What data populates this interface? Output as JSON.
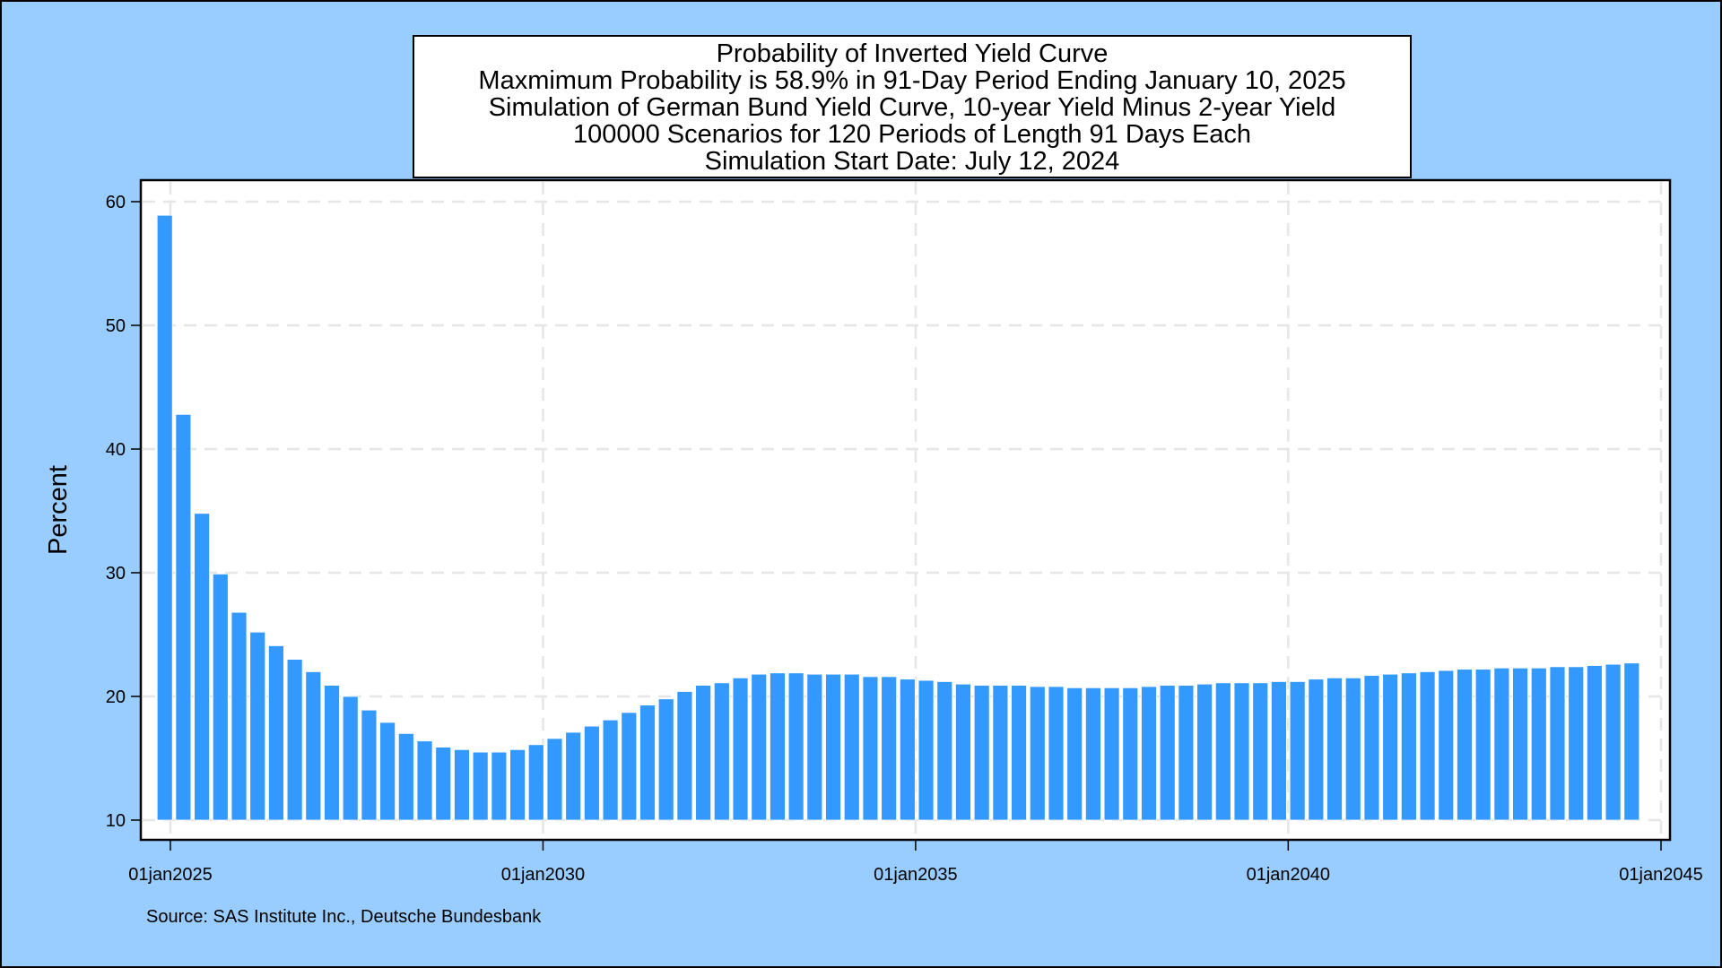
{
  "chart_data": {
    "type": "bar",
    "title_lines": [
      "Probability of Inverted Yield Curve",
      "Maxmimum Probability is 58.9% in 91-Day Period Ending January 10, 2025",
      "Simulation of German Bund Yield Curve, 10-year Yield Minus 2-year Yield",
      "100000 Scenarios for 120 Periods of Length 91 Days Each",
      "Simulation Start Date: July 12, 2024"
    ],
    "ylabel": "Percent",
    "xlabel": "",
    "ylim": [
      10,
      60
    ],
    "yticks": [
      10,
      20,
      30,
      40,
      50,
      60
    ],
    "xlim": [
      "2024-12-01",
      "2045-01-01"
    ],
    "xticks": [
      {
        "date": "2025-01-01",
        "label": "01jan2025"
      },
      {
        "date": "2030-01-01",
        "label": "01jan2030"
      },
      {
        "date": "2035-01-01",
        "label": "01jan2035"
      },
      {
        "date": "2040-01-01",
        "label": "01jan2040"
      },
      {
        "date": "2045-01-01",
        "label": "01jan2045"
      }
    ],
    "grid": true,
    "bar_color": "#3399FF",
    "period_end_dates": [
      "2025-01-10",
      "2025-04-11",
      "2025-07-11",
      "2025-10-10",
      "2026-01-09",
      "2026-04-10",
      "2026-07-10",
      "2026-10-09",
      "2027-01-08",
      "2027-04-09",
      "2027-07-09",
      "2027-10-08",
      "2028-01-07",
      "2028-04-07",
      "2028-07-07",
      "2028-10-06",
      "2029-01-05",
      "2029-04-06",
      "2029-07-06",
      "2029-10-05",
      "2030-01-04",
      "2030-04-05",
      "2030-07-05",
      "2030-10-04",
      "2031-01-03",
      "2031-04-04",
      "2031-07-04",
      "2031-10-03",
      "2032-01-02",
      "2032-04-02",
      "2032-07-02",
      "2032-10-01",
      "2032-12-31",
      "2033-04-01",
      "2033-07-01",
      "2033-09-30",
      "2033-12-30",
      "2034-03-31",
      "2034-06-30",
      "2034-09-29",
      "2034-12-29",
      "2035-03-30",
      "2035-06-29",
      "2035-09-28",
      "2035-12-28",
      "2036-03-28",
      "2036-06-27",
      "2036-09-26",
      "2036-12-26",
      "2037-03-27",
      "2037-06-26",
      "2037-09-25",
      "2037-12-25",
      "2038-03-26",
      "2038-06-25",
      "2038-09-24",
      "2038-12-24",
      "2039-03-25",
      "2039-06-24",
      "2039-09-23",
      "2039-12-23",
      "2040-03-23",
      "2040-06-22",
      "2040-09-21",
      "2040-12-21",
      "2041-03-22",
      "2041-06-21",
      "2041-09-20",
      "2041-12-20",
      "2042-03-21",
      "2042-06-20",
      "2042-09-19",
      "2042-12-19",
      "2043-03-20",
      "2043-06-19",
      "2043-09-18",
      "2043-12-18",
      "2044-03-18",
      "2044-06-17",
      "2044-09-16"
    ],
    "values": [
      58.9,
      42.8,
      34.8,
      29.9,
      26.8,
      25.2,
      24.1,
      23.0,
      22.0,
      20.9,
      20.0,
      18.9,
      17.9,
      17.0,
      16.4,
      15.9,
      15.7,
      15.5,
      15.5,
      15.7,
      16.1,
      16.6,
      17.1,
      17.6,
      18.1,
      18.7,
      19.3,
      19.8,
      20.4,
      20.9,
      21.1,
      21.5,
      21.8,
      21.9,
      21.9,
      21.8,
      21.8,
      21.8,
      21.6,
      21.6,
      21.4,
      21.3,
      21.2,
      21.0,
      20.9,
      20.9,
      20.9,
      20.8,
      20.8,
      20.7,
      20.7,
      20.7,
      20.7,
      20.8,
      20.9,
      20.9,
      21.0,
      21.1,
      21.1,
      21.1,
      21.2,
      21.2,
      21.4,
      21.5,
      21.5,
      21.7,
      21.8,
      21.9,
      22.0,
      22.1,
      22.2,
      22.2,
      22.3,
      22.3,
      22.3,
      22.4,
      22.4,
      22.5,
      22.6,
      22.7
    ]
  },
  "source_note": "Source: SAS Institute Inc., Deutsche Bundesbank"
}
